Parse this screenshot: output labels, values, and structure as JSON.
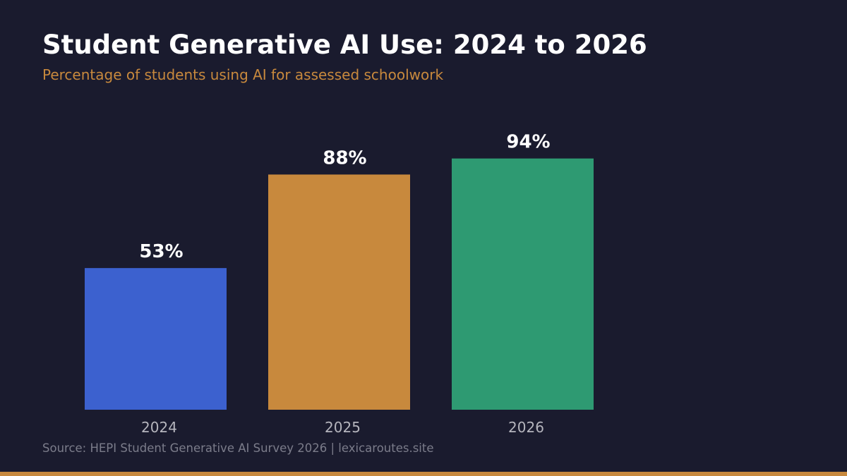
{
  "header": {
    "title": "Student Generative AI Use: 2024 to 2026",
    "subtitle": "Percentage of students using AI for assessed schoolwork"
  },
  "footer": {
    "source": "Source: HEPI Student Generative AI Survey 2026 | lexicaroutes.site"
  },
  "colors": {
    "background": "#1a1b2e",
    "accent": "#c8893d"
  },
  "chart_data": {
    "type": "bar",
    "categories": [
      "2024",
      "2025",
      "2026"
    ],
    "values": [
      53,
      88,
      94
    ],
    "value_labels": [
      "53%",
      "88%",
      "94%"
    ],
    "colors": [
      "#3c61cf",
      "#c8893d",
      "#2e9a72"
    ],
    "title": "Student Generative AI Use: 2024 to 2026",
    "subtitle": "Percentage of students using AI for assessed schoolwork",
    "xlabel": "",
    "ylabel": "",
    "ylim": [
      0,
      100
    ],
    "grid": false,
    "legend": "none"
  }
}
